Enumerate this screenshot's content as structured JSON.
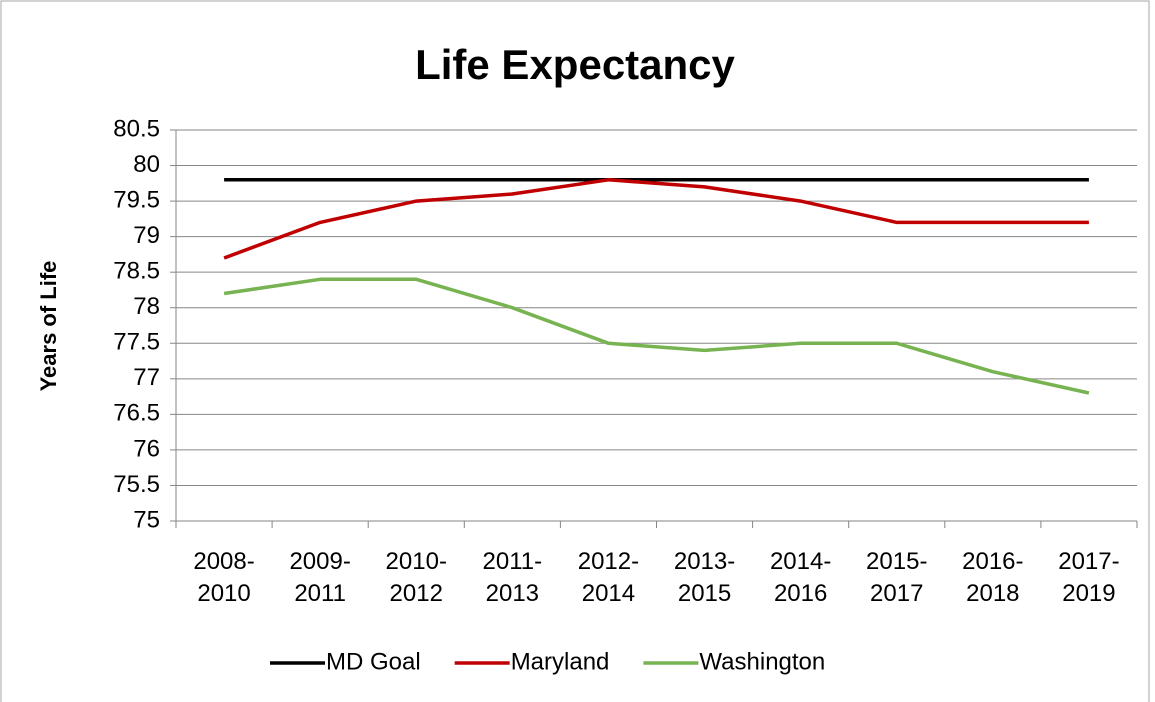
{
  "chart_data": {
    "type": "line",
    "title": "Life Expectancy",
    "y_label": "Years of Life",
    "categories": [
      "2008-2010",
      "2009-2011",
      "2010-2012",
      "2011-2013",
      "2012-2014",
      "2013-2015",
      "2014-2016",
      "2015-2017",
      "2016-2018",
      "2017-2019"
    ],
    "series": [
      {
        "name": "MD Goal",
        "color": "#000000",
        "values": [
          79.8,
          79.8,
          79.8,
          79.8,
          79.8,
          79.8,
          79.8,
          79.8,
          79.8,
          79.8
        ]
      },
      {
        "name": "Maryland",
        "color": "#c00000",
        "values": [
          78.7,
          79.2,
          79.5,
          79.6,
          79.8,
          79.7,
          79.5,
          79.2,
          79.2,
          79.2
        ]
      },
      {
        "name": "Washington",
        "color": "#77b350",
        "values": [
          78.2,
          78.4,
          78.4,
          78.0,
          77.5,
          77.4,
          77.5,
          77.5,
          77.1,
          76.8
        ]
      }
    ],
    "ylim": [
      75,
      80.5
    ],
    "yticks": [
      75,
      75.5,
      76,
      76.5,
      77,
      77.5,
      78,
      78.5,
      79,
      79.5,
      80,
      80.5
    ],
    "grid": true,
    "legend": "bottom"
  }
}
